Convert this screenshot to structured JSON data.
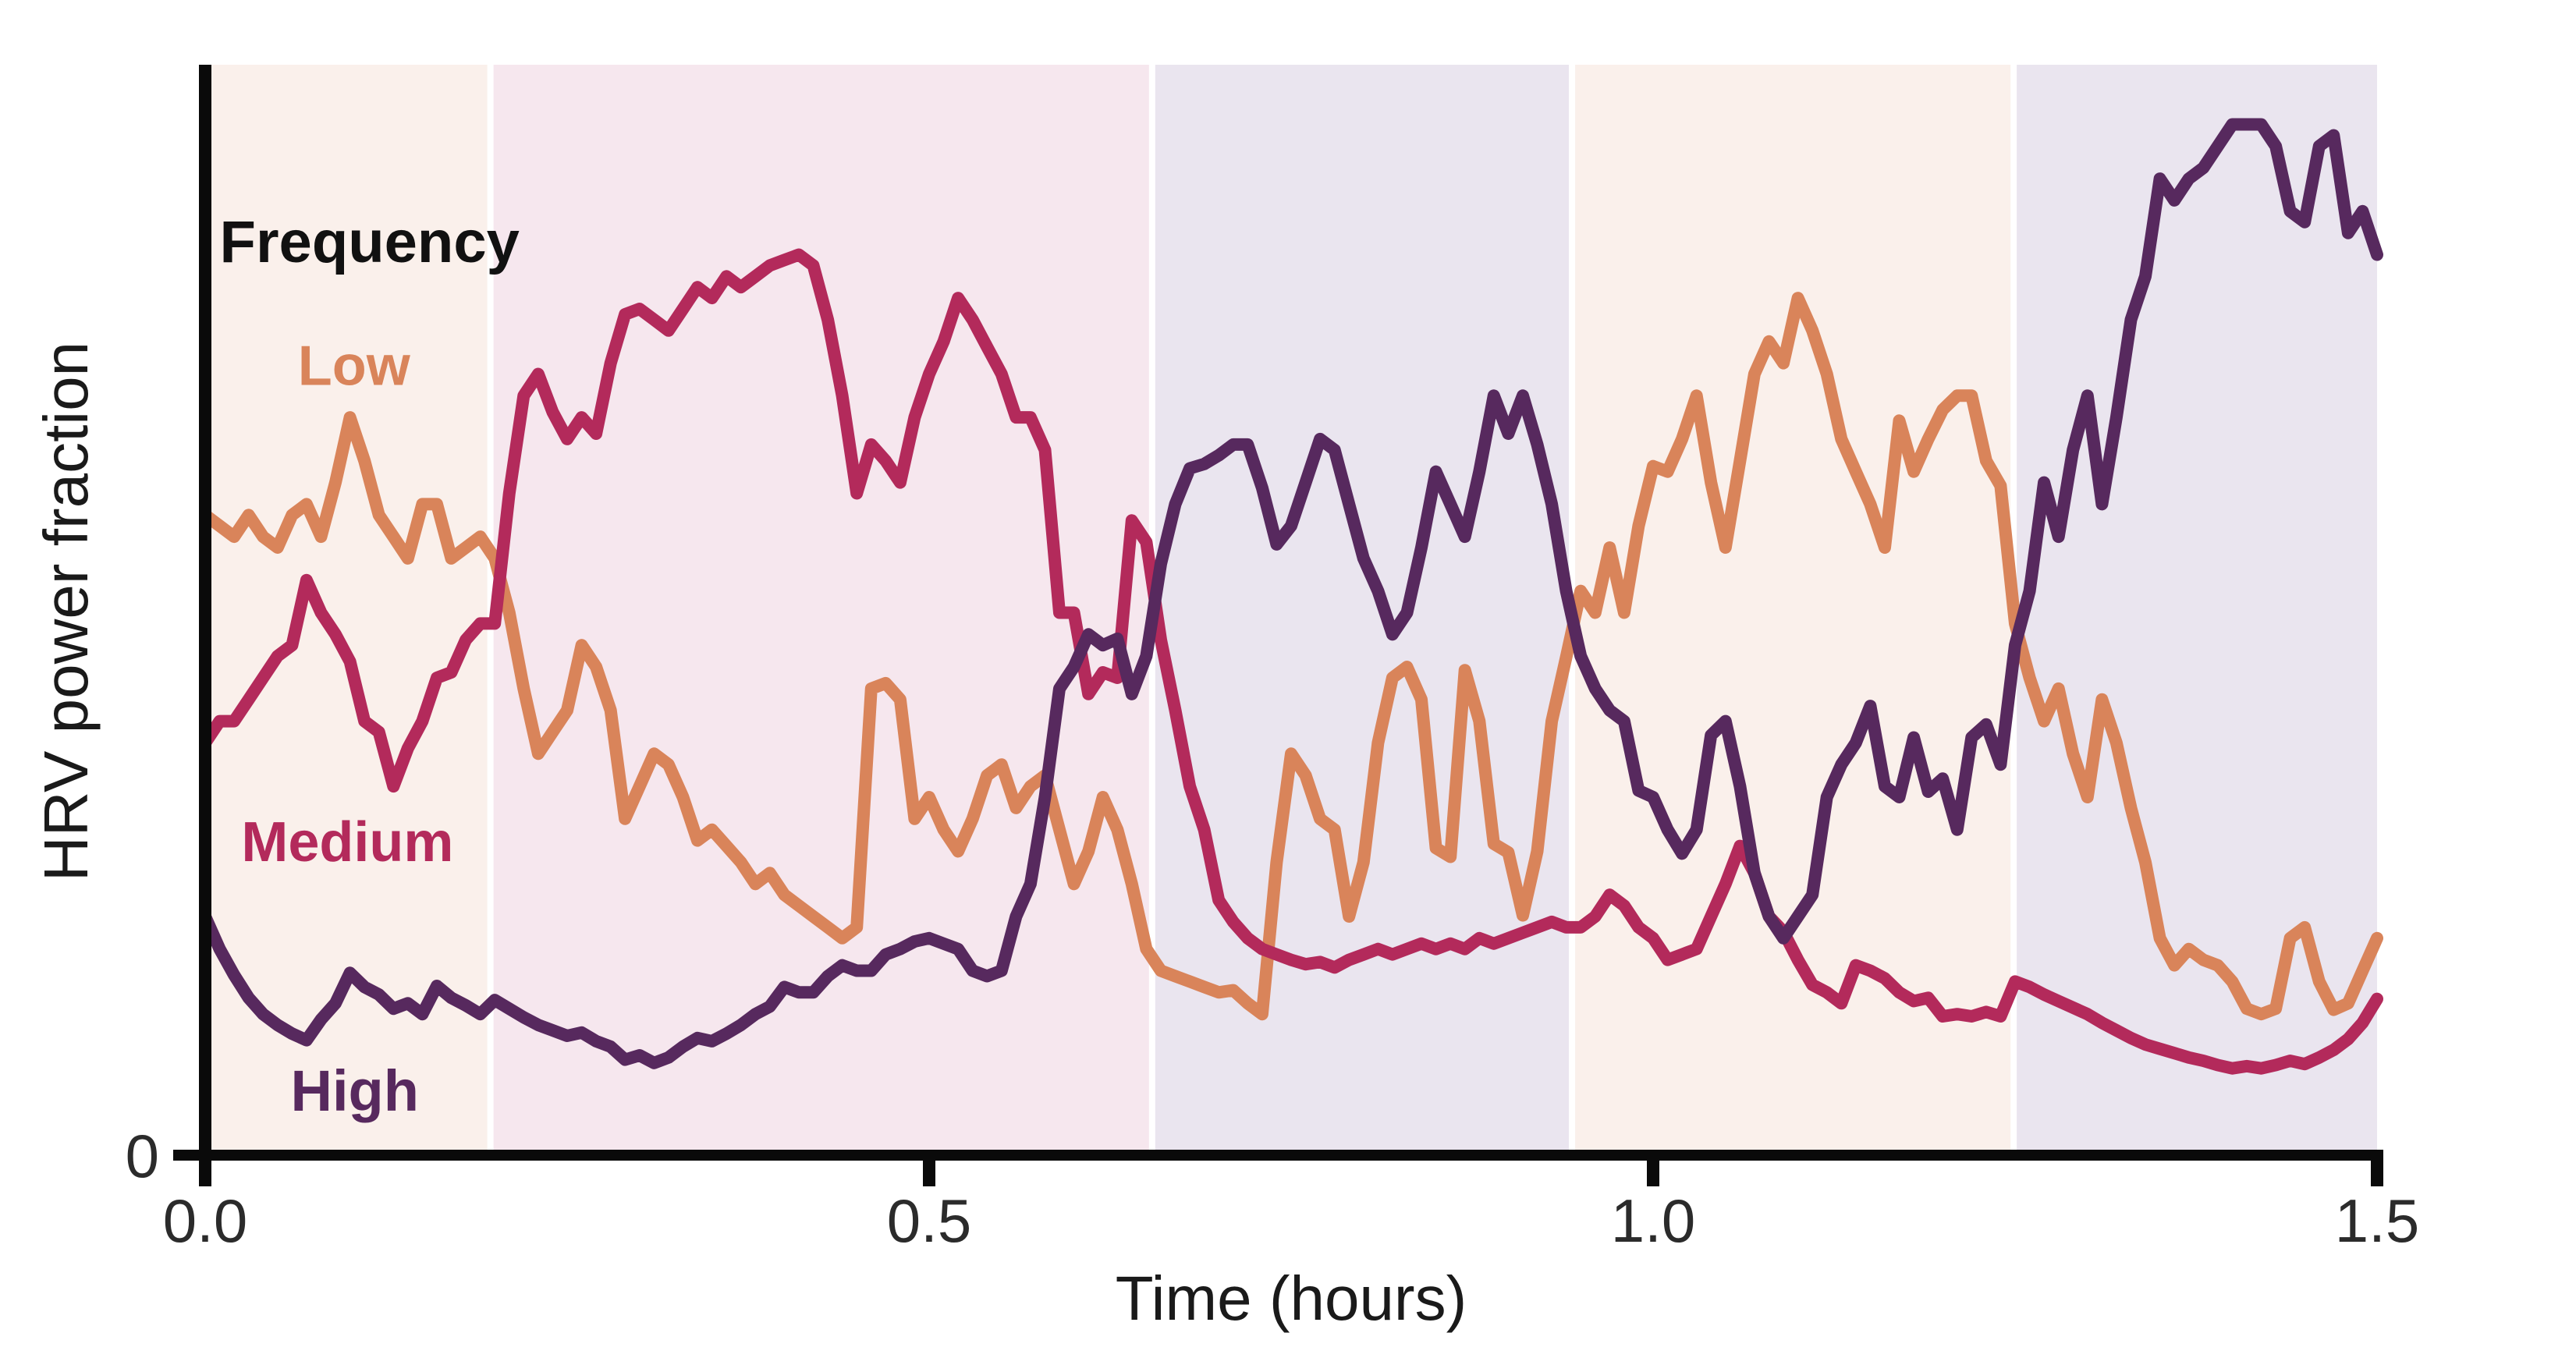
{
  "chart_data": {
    "type": "line",
    "title": "",
    "xlabel": "Time (hours)",
    "ylabel": "HRV power fraction",
    "xlim": [
      0,
      1.5
    ],
    "ylim": [
      0,
      1.005
    ],
    "grid": false,
    "legend_position": "inline-labels",
    "x_ticks": [
      0.0,
      0.5,
      1.0,
      1.5
    ],
    "x_tick_labels": [
      "0.0",
      "0.5",
      "1.0",
      "1.5"
    ],
    "y_ticks": [
      0
    ],
    "y_tick_labels": [
      "0"
    ],
    "axis_color": "#0a0a0a",
    "tick_label_color": "#2b2b2b",
    "bands": [
      {
        "t_start": 0.0,
        "t_end": 0.197,
        "color": "#faf0eb",
        "name": "segment-1-cream"
      },
      {
        "t_start": 0.197,
        "t_end": 0.654,
        "color": "#f6e7ee",
        "name": "segment-2-pink"
      },
      {
        "t_start": 0.654,
        "t_end": 0.944,
        "color": "#eae5ef",
        "name": "segment-3-lavender"
      },
      {
        "t_start": 0.944,
        "t_end": 1.249,
        "color": "#faf0eb",
        "name": "segment-4-cream"
      },
      {
        "t_start": 1.249,
        "t_end": 1.5,
        "color": "#eae5ef",
        "name": "segment-5-lavender"
      }
    ],
    "annotations": [
      {
        "text": "Frequency",
        "color": "#111111",
        "t": 0.01,
        "v": 0.823,
        "size": 76
      },
      {
        "text": "Low",
        "color": "#d9845a",
        "t": 0.064,
        "v": 0.71,
        "size": 72
      },
      {
        "text": "Medium",
        "color": "#b32a5b",
        "t": 0.025,
        "v": 0.271,
        "size": 72
      },
      {
        "text": "High",
        "color": "#57295e",
        "t": 0.059,
        "v": 0.041,
        "size": 74
      }
    ],
    "x_start": 0.0,
    "x_step": 0.01,
    "series": [
      {
        "name": "Low",
        "color": "#d9845a",
        "values": [
          0.59,
          0.58,
          0.57,
          0.59,
          0.57,
          0.56,
          0.59,
          0.6,
          0.57,
          0.62,
          0.68,
          0.64,
          0.59,
          0.57,
          0.55,
          0.6,
          0.6,
          0.55,
          0.56,
          0.57,
          0.55,
          0.5,
          0.43,
          0.37,
          0.39,
          0.41,
          0.47,
          0.45,
          0.41,
          0.31,
          0.34,
          0.37,
          0.36,
          0.33,
          0.29,
          0.3,
          0.285,
          0.27,
          0.25,
          0.26,
          0.24,
          0.23,
          0.22,
          0.21,
          0.2,
          0.21,
          0.43,
          0.435,
          0.42,
          0.31,
          0.33,
          0.3,
          0.28,
          0.31,
          0.35,
          0.36,
          0.32,
          0.34,
          0.35,
          0.3,
          0.25,
          0.28,
          0.33,
          0.3,
          0.25,
          0.19,
          0.17,
          0.165,
          0.16,
          0.155,
          0.15,
          0.152,
          0.14,
          0.13,
          0.27,
          0.37,
          0.35,
          0.31,
          0.3,
          0.22,
          0.27,
          0.38,
          0.44,
          0.45,
          0.42,
          0.283,
          0.275,
          0.447,
          0.4,
          0.287,
          0.279,
          0.221,
          0.28,
          0.4,
          0.459,
          0.52,
          0.5,
          0.56,
          0.5,
          0.58,
          0.635,
          0.63,
          0.66,
          0.7,
          0.62,
          0.56,
          0.64,
          0.72,
          0.75,
          0.73,
          0.79,
          0.76,
          0.72,
          0.66,
          0.63,
          0.6,
          0.56,
          0.677,
          0.63,
          0.66,
          0.687,
          0.7,
          0.7,
          0.64,
          0.617,
          0.49,
          0.44,
          0.4,
          0.43,
          0.37,
          0.33,
          0.42,
          0.38,
          0.32,
          0.27,
          0.2,
          0.175,
          0.19,
          0.18,
          0.175,
          0.16,
          0.135,
          0.13,
          0.135,
          0.2,
          0.21,
          0.16,
          0.134,
          0.14,
          0.17,
          0.2
        ]
      },
      {
        "name": "Medium",
        "color": "#b32a5b",
        "values": [
          0.38,
          0.4,
          0.4,
          0.42,
          0.44,
          0.46,
          0.47,
          0.53,
          0.5,
          0.48,
          0.455,
          0.4,
          0.39,
          0.34,
          0.375,
          0.4,
          0.44,
          0.445,
          0.475,
          0.49,
          0.49,
          0.61,
          0.7,
          0.72,
          0.685,
          0.66,
          0.68,
          0.665,
          0.73,
          0.775,
          0.78,
          0.77,
          0.76,
          0.78,
          0.8,
          0.79,
          0.81,
          0.8,
          0.81,
          0.82,
          0.825,
          0.83,
          0.82,
          0.77,
          0.7,
          0.61,
          0.655,
          0.64,
          0.62,
          0.68,
          0.72,
          0.75,
          0.79,
          0.77,
          0.745,
          0.72,
          0.68,
          0.68,
          0.65,
          0.5,
          0.5,
          0.425,
          0.445,
          0.44,
          0.585,
          0.565,
          0.475,
          0.41,
          0.34,
          0.3,
          0.235,
          0.215,
          0.2,
          0.19,
          0.185,
          0.18,
          0.176,
          0.178,
          0.173,
          0.18,
          0.185,
          0.19,
          0.185,
          0.19,
          0.195,
          0.19,
          0.195,
          0.19,
          0.2,
          0.195,
          0.2,
          0.205,
          0.21,
          0.215,
          0.21,
          0.21,
          0.22,
          0.24,
          0.23,
          0.21,
          0.2,
          0.18,
          0.185,
          0.19,
          0.22,
          0.25,
          0.285,
          0.26,
          0.22,
          0.206,
          0.18,
          0.157,
          0.15,
          0.14,
          0.175,
          0.17,
          0.163,
          0.15,
          0.142,
          0.145,
          0.128,
          0.13,
          0.128,
          0.132,
          0.128,
          0.16,
          0.155,
          0.148,
          0.142,
          0.136,
          0.13,
          0.122,
          0.115,
          0.108,
          0.102,
          0.098,
          0.094,
          0.09,
          0.087,
          0.083,
          0.08,
          0.082,
          0.08,
          0.083,
          0.087,
          0.084,
          0.09,
          0.097,
          0.107,
          0.122,
          0.144
        ]
      },
      {
        "name": "High",
        "color": "#57295e",
        "values": [
          0.22,
          0.19,
          0.166,
          0.145,
          0.13,
          0.12,
          0.112,
          0.106,
          0.125,
          0.14,
          0.168,
          0.155,
          0.148,
          0.135,
          0.14,
          0.13,
          0.156,
          0.145,
          0.138,
          0.13,
          0.143,
          0.135,
          0.127,
          0.12,
          0.115,
          0.11,
          0.113,
          0.105,
          0.1,
          0.088,
          0.092,
          0.085,
          0.09,
          0.1,
          0.108,
          0.105,
          0.112,
          0.12,
          0.13,
          0.137,
          0.155,
          0.15,
          0.15,
          0.165,
          0.175,
          0.17,
          0.17,
          0.185,
          0.19,
          0.197,
          0.2,
          0.195,
          0.19,
          0.17,
          0.165,
          0.17,
          0.22,
          0.25,
          0.33,
          0.43,
          0.45,
          0.48,
          0.47,
          0.476,
          0.425,
          0.46,
          0.545,
          0.6,
          0.633,
          0.637,
          0.645,
          0.655,
          0.655,
          0.615,
          0.563,
          0.58,
          0.62,
          0.66,
          0.65,
          0.6,
          0.55,
          0.52,
          0.48,
          0.5,
          0.56,
          0.63,
          0.6,
          0.57,
          0.63,
          0.7,
          0.665,
          0.7,
          0.655,
          0.6,
          0.52,
          0.46,
          0.43,
          0.41,
          0.4,
          0.336,
          0.33,
          0.3,
          0.278,
          0.3,
          0.387,
          0.4,
          0.34,
          0.26,
          0.22,
          0.2,
          0.22,
          0.24,
          0.33,
          0.36,
          0.38,
          0.414,
          0.34,
          0.33,
          0.385,
          0.335,
          0.347,
          0.3,
          0.385,
          0.397,
          0.36,
          0.47,
          0.52,
          0.62,
          0.57,
          0.65,
          0.7,
          0.6,
          0.68,
          0.77,
          0.81,
          0.9,
          0.88,
          0.9,
          0.91,
          0.93,
          0.95,
          0.95,
          0.95,
          0.93,
          0.87,
          0.86,
          0.93,
          0.94,
          0.85,
          0.87,
          0.83
        ]
      }
    ]
  }
}
